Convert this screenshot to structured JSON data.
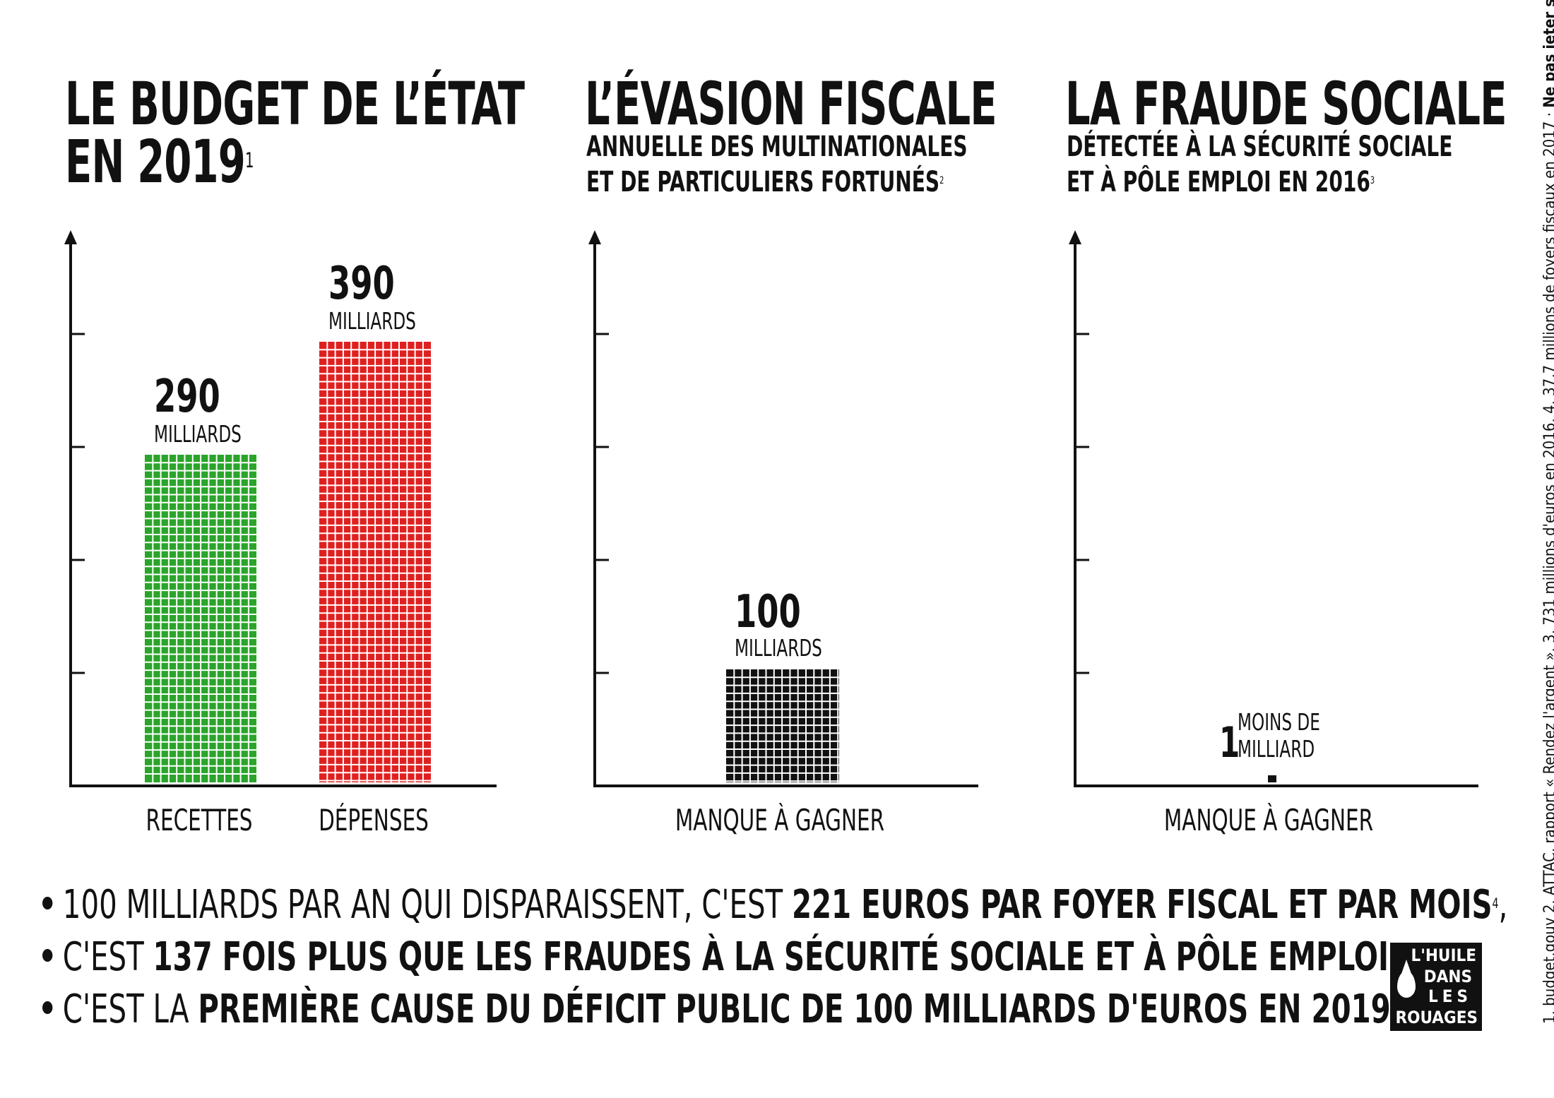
{
  "colors": {
    "green": "#2aa52a",
    "red": "#e02020",
    "black": "#111111"
  },
  "panels": [
    {
      "title_lines": [
        "LE BUDGET DE L’ÉTAT",
        "EN 2019"
      ],
      "title_note": "1",
      "subtitle_lines": [],
      "subtitle_note": ""
    },
    {
      "title_lines": [
        "L’ÉVASION FISCALE"
      ],
      "title_note": "",
      "subtitle_lines": [
        "ANNUELLE DES  MULTINATIONALES",
        "ET DE PARTICULIERS FORTUNÉS"
      ],
      "subtitle_note": "2"
    },
    {
      "title_lines": [
        "LA FRAUDE SOCIALE"
      ],
      "title_note": "",
      "subtitle_lines": [
        "DÉTECTÉE À LA SÉCURITÉ SOCIALE",
        "ET À PÔLE EMPLOI EN 2016"
      ],
      "subtitle_note": "3"
    }
  ],
  "chart_data": [
    {
      "type": "bar",
      "title": "LE BUDGET DE L’ÉTAT EN 2019",
      "categories": [
        "RECETTES",
        "DÉPENSES"
      ],
      "values": [
        290,
        390
      ],
      "value_labels": [
        "290",
        "390"
      ],
      "unit_labels": [
        "MILLIARDS",
        "MILLIARDS"
      ],
      "colors": [
        "#2aa52a",
        "#e02020"
      ],
      "ylim": [
        0,
        500
      ],
      "yticks": [
        100,
        200,
        300,
        400
      ]
    },
    {
      "type": "bar",
      "title": "L’ÉVASION FISCALE",
      "categories": [
        "MANQUE À GAGNER"
      ],
      "values": [
        100
      ],
      "value_labels": [
        "100"
      ],
      "unit_labels": [
        "MILLIARDS"
      ],
      "colors": [
        "#111111"
      ],
      "ylim": [
        0,
        500
      ],
      "yticks": [
        100,
        200,
        300,
        400
      ]
    },
    {
      "type": "bar",
      "title": "LA FRAUDE SOCIALE",
      "categories": [
        "MANQUE À GAGNER"
      ],
      "values": [
        1
      ],
      "value_labels": [
        "1"
      ],
      "unit_labels": [
        "MOINS DE MILLIARD"
      ],
      "colors": [
        "#111111"
      ],
      "ylim": [
        0,
        500
      ],
      "yticks": [
        100,
        200,
        300,
        400
      ]
    }
  ],
  "fraud_unit_lines": [
    "MOINS DE",
    "MILLIARD"
  ],
  "bullets": [
    {
      "normal": "100 MILLIARDS PAR AN QUI DISPARAISSENT, C'EST ",
      "bold": "221 EUROS PAR FOYER FISCAL ET PAR MOIS",
      "note": "4",
      "tail": ","
    },
    {
      "normal": "C'EST ",
      "bold": "137 FOIS PLUS QUE LES FRAUDES À LA SÉCURITÉ SOCIALE ET À PÔLE EMPLOI",
      "note": "",
      "tail": ","
    },
    {
      "normal": "C'EST LA ",
      "bold": "PREMIÈRE CAUSE DU DÉFICIT PUBLIC DE 100 MILLIARDS D'EUROS EN 2019",
      "note": "",
      "tail": "."
    }
  ],
  "sidenote": {
    "normal": "1. budget.gouv 2. ATTAC, rapport « Rendez l'argent ». 3. 731 millions d'euros en 2016. 4. 37,7 millions de foyers fiscaux en 2017 · ",
    "bold": "Ne pas jeter sur la voie publique."
  },
  "logo": {
    "lines": [
      "L'HUILE",
      "DANS",
      "LES",
      "ROUAGES"
    ]
  }
}
